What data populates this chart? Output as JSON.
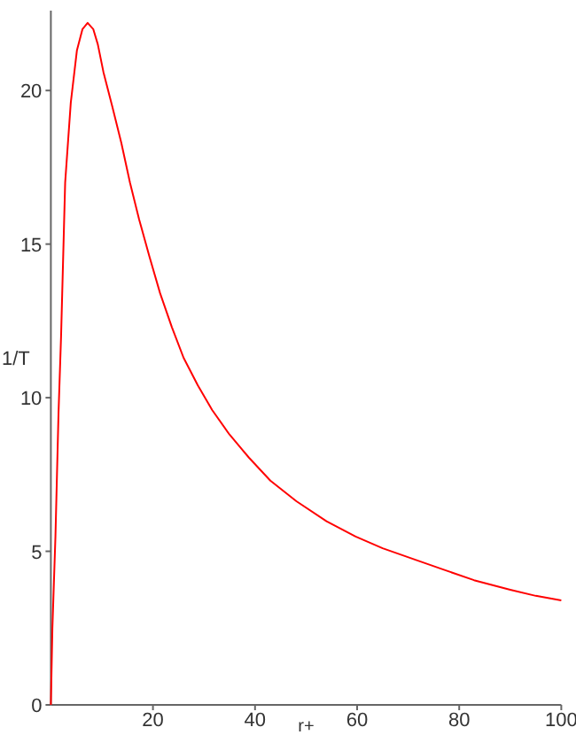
{
  "chart_data": {
    "type": "line",
    "xlabel": "r+",
    "ylabel": "1/T",
    "xlim": [
      0,
      100
    ],
    "ylim": [
      0,
      22.6
    ],
    "xticks": [
      20,
      40,
      60,
      80,
      100
    ],
    "yticks": [
      0,
      5,
      10,
      15,
      20
    ],
    "grid": false,
    "marker": "none",
    "line_style": "solid",
    "series": [
      {
        "color": "#ff0000",
        "x": [
          0,
          0.3,
          0.6,
          0.9,
          1.2,
          1.5,
          2,
          2.8,
          3.9,
          5.1,
          6.2,
          7.2,
          8.3,
          9.2,
          10.3,
          12,
          13.8,
          15.5,
          17.3,
          19.3,
          21.4,
          23.7,
          26,
          28.8,
          31.6,
          35,
          38.8,
          43,
          48.1,
          54,
          59.7,
          65,
          71.3,
          77,
          82.9,
          90,
          95,
          100
        ],
        "values": [
          0,
          2.5,
          4,
          5.5,
          7.5,
          9.5,
          12,
          17,
          19.6,
          21.3,
          22,
          22.2,
          22,
          21.5,
          20.6,
          19.5,
          18.3,
          17,
          15.8,
          14.6,
          13.4,
          12.3,
          11.3,
          10.4,
          9.6,
          8.8,
          8.05,
          7.3,
          6.63,
          5.98,
          5.48,
          5.1,
          4.73,
          4.4,
          4.06,
          3.75,
          3.55,
          3.4
        ]
      }
    ]
  }
}
